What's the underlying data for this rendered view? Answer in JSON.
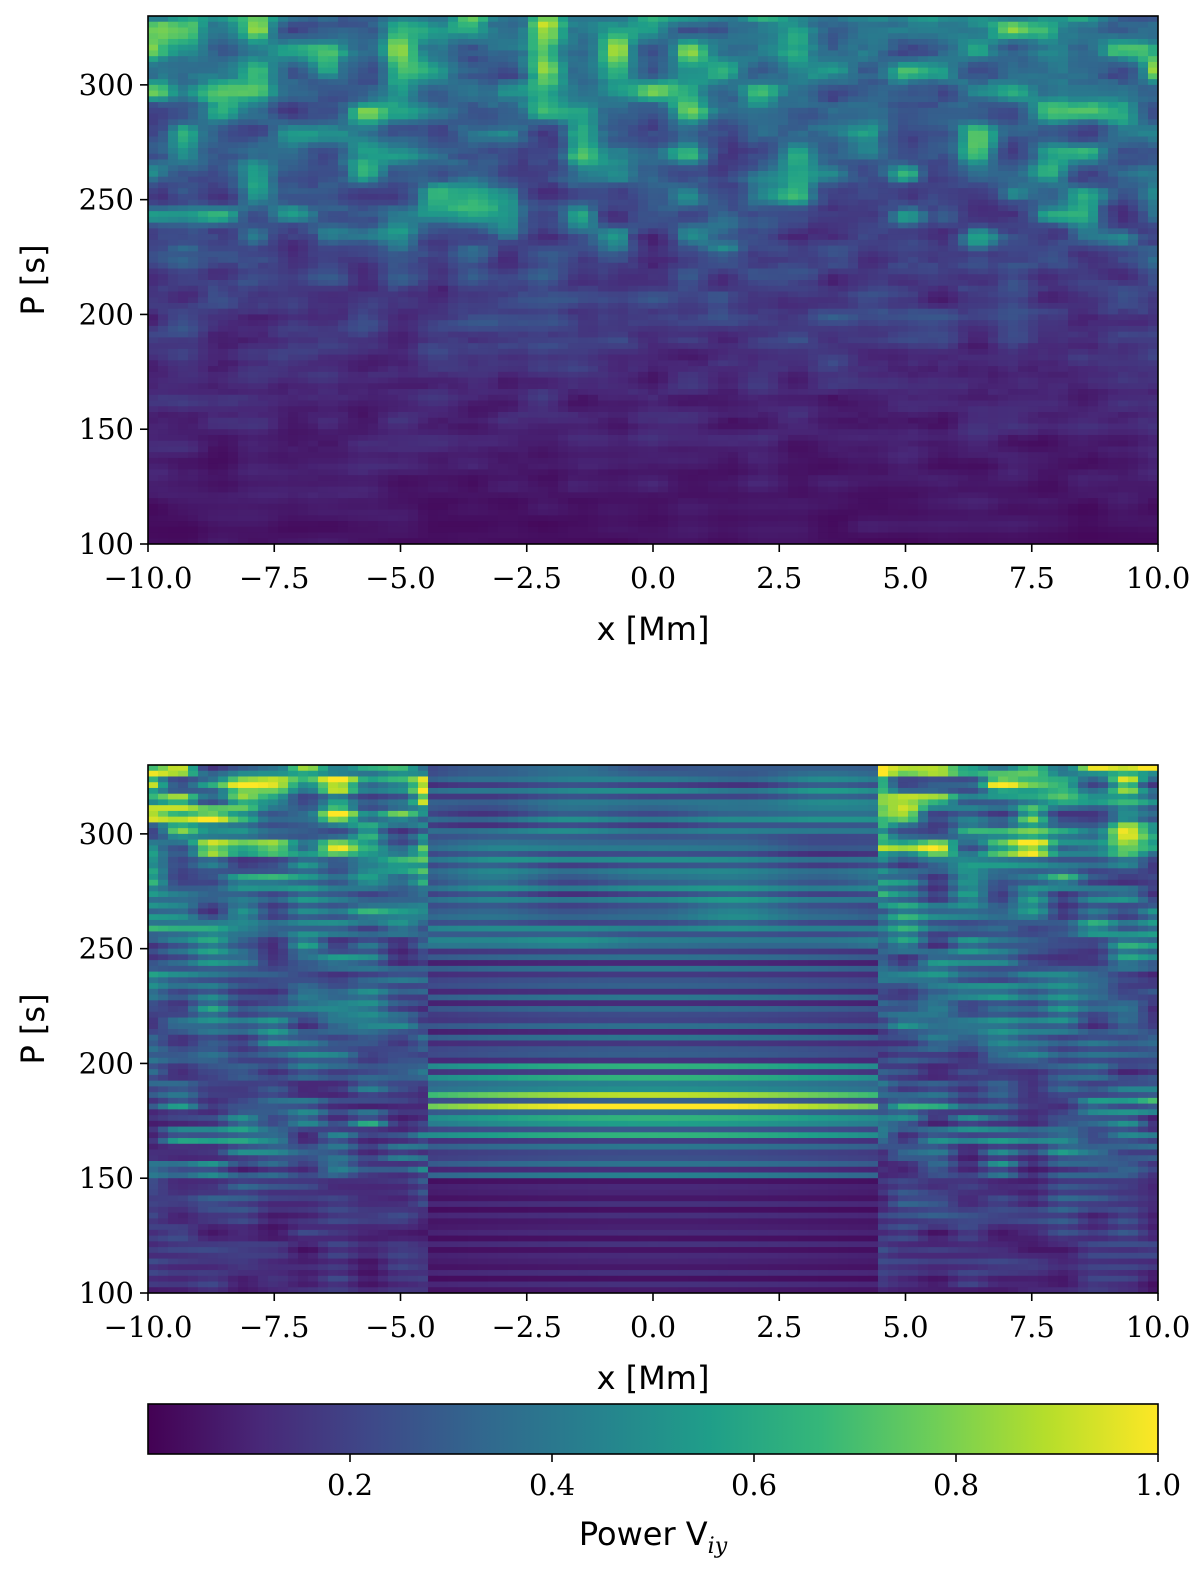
{
  "chart_data": [
    {
      "type": "heatmap",
      "panel": "top",
      "xlabel": "x [Mm]",
      "ylabel": "P [s]",
      "xlim": [
        -10.0,
        10.0
      ],
      "ylim": [
        100,
        330
      ],
      "xticks": [
        -10.0,
        -7.5,
        -5.0,
        -2.5,
        0.0,
        2.5,
        5.0,
        7.5,
        10.0
      ],
      "xtick_labels": [
        "−10.0",
        "−7.5",
        "−5.0",
        "−2.5",
        "0.0",
        "2.5",
        "5.0",
        "7.5",
        "10.0"
      ],
      "yticks": [
        100,
        150,
        200,
        250,
        300
      ],
      "ytick_labels": [
        "100",
        "150",
        "200",
        "250",
        "300"
      ],
      "colormap": "viridis",
      "value_range": [
        0,
        1
      ],
      "description_of_field": "patchy oscillatory power; high power (yellow) concentrated at P > 230 s across all x; low power (dark purple) with fine horizontal banding at P < 200 s"
    },
    {
      "type": "heatmap",
      "panel": "bottom",
      "xlabel": "x [Mm]",
      "ylabel": "P [s]",
      "xlim": [
        -10.0,
        10.0
      ],
      "ylim": [
        100,
        330
      ],
      "xticks": [
        -10.0,
        -7.5,
        -5.0,
        -2.5,
        0.0,
        2.5,
        5.0,
        7.5,
        10.0
      ],
      "xtick_labels": [
        "−10.0",
        "−7.5",
        "−5.0",
        "−2.5",
        "0.0",
        "2.5",
        "5.0",
        "7.5",
        "10.0"
      ],
      "yticks": [
        100,
        150,
        200,
        250,
        300
      ],
      "yticks_labels_note": "",
      "ytick_labels": [
        "100",
        "150",
        "200",
        "250",
        "300"
      ],
      "colormap": "viridis",
      "value_range": [
        0,
        1
      ],
      "description_of_field": "horizontal bands across the central region -4.5 < x < 4.3 Mm with strongest power near P = 170-195 s; patchy power outside |x| > 5 Mm, bright near P = 300-330 s"
    }
  ],
  "colorbar": {
    "label_text": "Power V",
    "label_sub": "iy",
    "range": [
      0,
      1
    ],
    "ticks": [
      0.2,
      0.4,
      0.6,
      0.8,
      1.0
    ],
    "tick_labels": [
      "0.2",
      "0.4",
      "0.6",
      "0.8",
      "1.0"
    ],
    "colormap": "viridis"
  },
  "colors": {
    "viridis_stops": [
      "#440154",
      "#482878",
      "#3e4989",
      "#31688e",
      "#26828e",
      "#1f9e89",
      "#35b779",
      "#6ece58",
      "#b5de2b",
      "#fde725"
    ]
  }
}
